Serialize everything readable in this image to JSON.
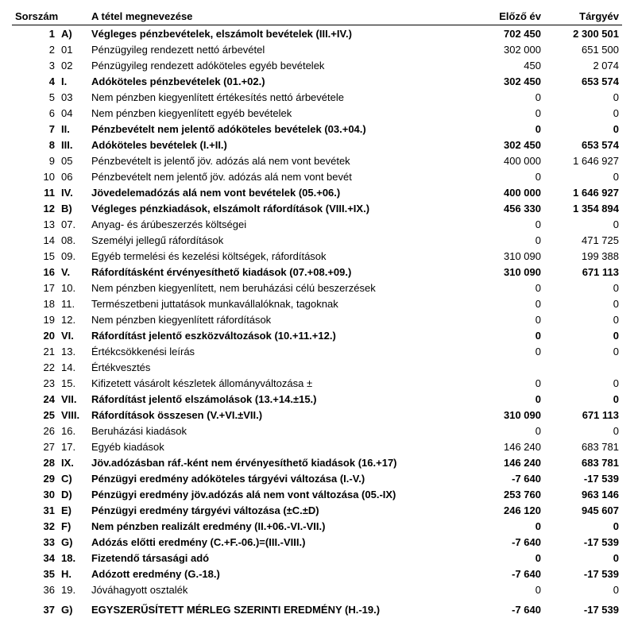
{
  "headers": {
    "sorszam": "Sorszám",
    "desc": "A tétel megnevezése",
    "prev": "Előző év",
    "curr": "Tárgyév"
  },
  "rows": [
    {
      "n": "1",
      "code": "A)",
      "desc": "Végleges pénzbevételek, elszámolt bevételek (III.+IV.)",
      "prev": "702 450",
      "curr": "2 300 501",
      "bold": true
    },
    {
      "n": "2",
      "code": "01",
      "desc": "Pénzügyileg rendezett nettó árbevétel",
      "prev": "302 000",
      "curr": "651 500",
      "bold": false
    },
    {
      "n": "3",
      "code": "02",
      "desc": "Pénzügyileg rendezett adóköteles egyéb bevételek",
      "prev": "450",
      "curr": "2 074",
      "bold": false
    },
    {
      "n": "4",
      "code": "I.",
      "desc": "Adóköteles pénzbevételek (01.+02.)",
      "prev": "302 450",
      "curr": "653 574",
      "bold": true
    },
    {
      "n": "5",
      "code": "03",
      "desc": "Nem pénzben kiegyenlített értékesítés nettó árbevétele",
      "prev": "0",
      "curr": "0",
      "bold": false
    },
    {
      "n": "6",
      "code": "04",
      "desc": "Nem pénzben kiegyenlített egyéb bevételek",
      "prev": "0",
      "curr": "0",
      "bold": false
    },
    {
      "n": "7",
      "code": "II.",
      "desc": "Pénzbevételt nem jelentő adóköteles bevételek (03.+04.)",
      "prev": "0",
      "curr": "0",
      "bold": true
    },
    {
      "n": "8",
      "code": "III.",
      "desc": "Adóköteles bevételek (I.+II.)",
      "prev": "302 450",
      "curr": "653 574",
      "bold": true
    },
    {
      "n": "9",
      "code": "05",
      "desc": "Pénzbevételt is jelentő jöv. adózás alá nem vont bevétek",
      "prev": "400 000",
      "curr": "1 646 927",
      "bold": false
    },
    {
      "n": "10",
      "code": "06",
      "desc": "Pénzbevételt nem jelentő jöv. adózás alá nem vont bevét",
      "prev": "0",
      "curr": "0",
      "bold": false
    },
    {
      "n": "11",
      "code": "IV.",
      "desc": "Jövedelemadózás alá nem vont bevételek (05.+06.)",
      "prev": "400 000",
      "curr": "1 646 927",
      "bold": true
    },
    {
      "n": "12",
      "code": "B)",
      "desc": "Végleges pénzkiadások, elszámolt ráfordítások (VIII.+IX.)",
      "prev": "456 330",
      "curr": "1 354 894",
      "bold": true
    },
    {
      "n": "13",
      "code": "07.",
      "desc": "Anyag- és árúbeszerzés költségei",
      "prev": "0",
      "curr": "0",
      "bold": false
    },
    {
      "n": "14",
      "code": "08.",
      "desc": "Személyi jellegű ráfordítások",
      "prev": "0",
      "curr": "471 725",
      "bold": false
    },
    {
      "n": "15",
      "code": "09.",
      "desc": "Egyéb termelési és kezelési költségek, ráfordítások",
      "prev": "310 090",
      "curr": "199 388",
      "bold": false
    },
    {
      "n": "16",
      "code": "V.",
      "desc": "Ráfordításként érvényesíthető kiadások (07.+08.+09.)",
      "prev": "310 090",
      "curr": "671 113",
      "bold": true
    },
    {
      "n": "17",
      "code": "10.",
      "desc": "Nem pénzben kiegyenlített, nem beruházási célú beszerzések",
      "prev": "0",
      "curr": "0",
      "bold": false
    },
    {
      "n": "18",
      "code": "11.",
      "desc": "Természetbeni juttatások munkavállalóknak, tagoknak",
      "prev": "0",
      "curr": "0",
      "bold": false
    },
    {
      "n": "19",
      "code": "12.",
      "desc": "Nem pénzben kiegyenlített ráfordítások",
      "prev": "0",
      "curr": "0",
      "bold": false
    },
    {
      "n": "20",
      "code": "VI.",
      "desc": "Ráfordítást jelentő eszközváltozások (10.+11.+12.)",
      "prev": "0",
      "curr": "0",
      "bold": true
    },
    {
      "n": "21",
      "code": "13.",
      "desc": "Értékcsökkenési leírás",
      "prev": "0",
      "curr": "0",
      "bold": false
    },
    {
      "n": "22",
      "code": "14.",
      "desc": "Értékvesztés",
      "prev": "",
      "curr": "",
      "bold": false
    },
    {
      "n": "23",
      "code": "15.",
      "desc": "Kifizetett vásárolt készletek állományváltozása ±",
      "prev": "0",
      "curr": "0",
      "bold": false
    },
    {
      "n": "24",
      "code": "VII.",
      "desc": "Ráfordítást jelentő elszámolások (13.+14.±15.)",
      "prev": "0",
      "curr": "0",
      "bold": true
    },
    {
      "n": "25",
      "code": "VIII.",
      "desc": "Ráfordítások összesen (V.+VI.±VII.)",
      "prev": "310 090",
      "curr": "671 113",
      "bold": true
    },
    {
      "n": "26",
      "code": "16.",
      "desc": "Beruházási kiadások",
      "prev": "0",
      "curr": "0",
      "bold": false
    },
    {
      "n": "27",
      "code": "17.",
      "desc": "Egyéb kiadások",
      "prev": "146 240",
      "curr": "683 781",
      "bold": false
    },
    {
      "n": "28",
      "code": "IX.",
      "desc": "Jöv.adózásban ráf.-ként nem érvényesíthető kiadások (16.+17)",
      "prev": "146 240",
      "curr": "683 781",
      "bold": true
    },
    {
      "n": "29",
      "code": "C)",
      "desc": "Pénzügyi eredmény adóköteles tárgyévi változása (I.-V.)",
      "prev": "-7 640",
      "curr": "-17 539",
      "bold": true
    },
    {
      "n": "30",
      "code": "D)",
      "desc": "Pénzügyi eredmény jöv.adózás alá nem vont változása (05.-IX)",
      "prev": "253 760",
      "curr": "963 146",
      "bold": true
    },
    {
      "n": "31",
      "code": "E)",
      "desc": "Pénzügyi eredmény tárgyévi változása (±C.±D)",
      "prev": "246 120",
      "curr": "945 607",
      "bold": true
    },
    {
      "n": "32",
      "code": "F)",
      "desc": "Nem pénzben realizált eredmény (II.+06.-VI.-VII.)",
      "prev": "0",
      "curr": "0",
      "bold": true
    },
    {
      "n": "33",
      "code": "G)",
      "desc": "Adózás előtti eredmény (C.+F.-06.)=(III.-VIII.)",
      "prev": "-7 640",
      "curr": "-17 539",
      "bold": true
    },
    {
      "n": "34",
      "code": "18.",
      "desc": "Fizetendő társasági adó",
      "prev": "0",
      "curr": "0",
      "bold": true
    },
    {
      "n": "35",
      "code": "H.",
      "desc": "Adózott eredmény (G.-18.)",
      "prev": "-7 640",
      "curr": "-17 539",
      "bold": true
    },
    {
      "n": "36",
      "code": "19.",
      "desc": "Jóváhagyott osztalék",
      "prev": "0",
      "curr": "0",
      "bold": false
    },
    {
      "n": "37",
      "code": "G)",
      "desc": "EGYSZERŰSÍTETT MÉRLEG SZERINTI EREDMÉNY (H.-19.)",
      "prev": "-7 640",
      "curr": "-17 539",
      "bold": true,
      "last": true
    }
  ]
}
